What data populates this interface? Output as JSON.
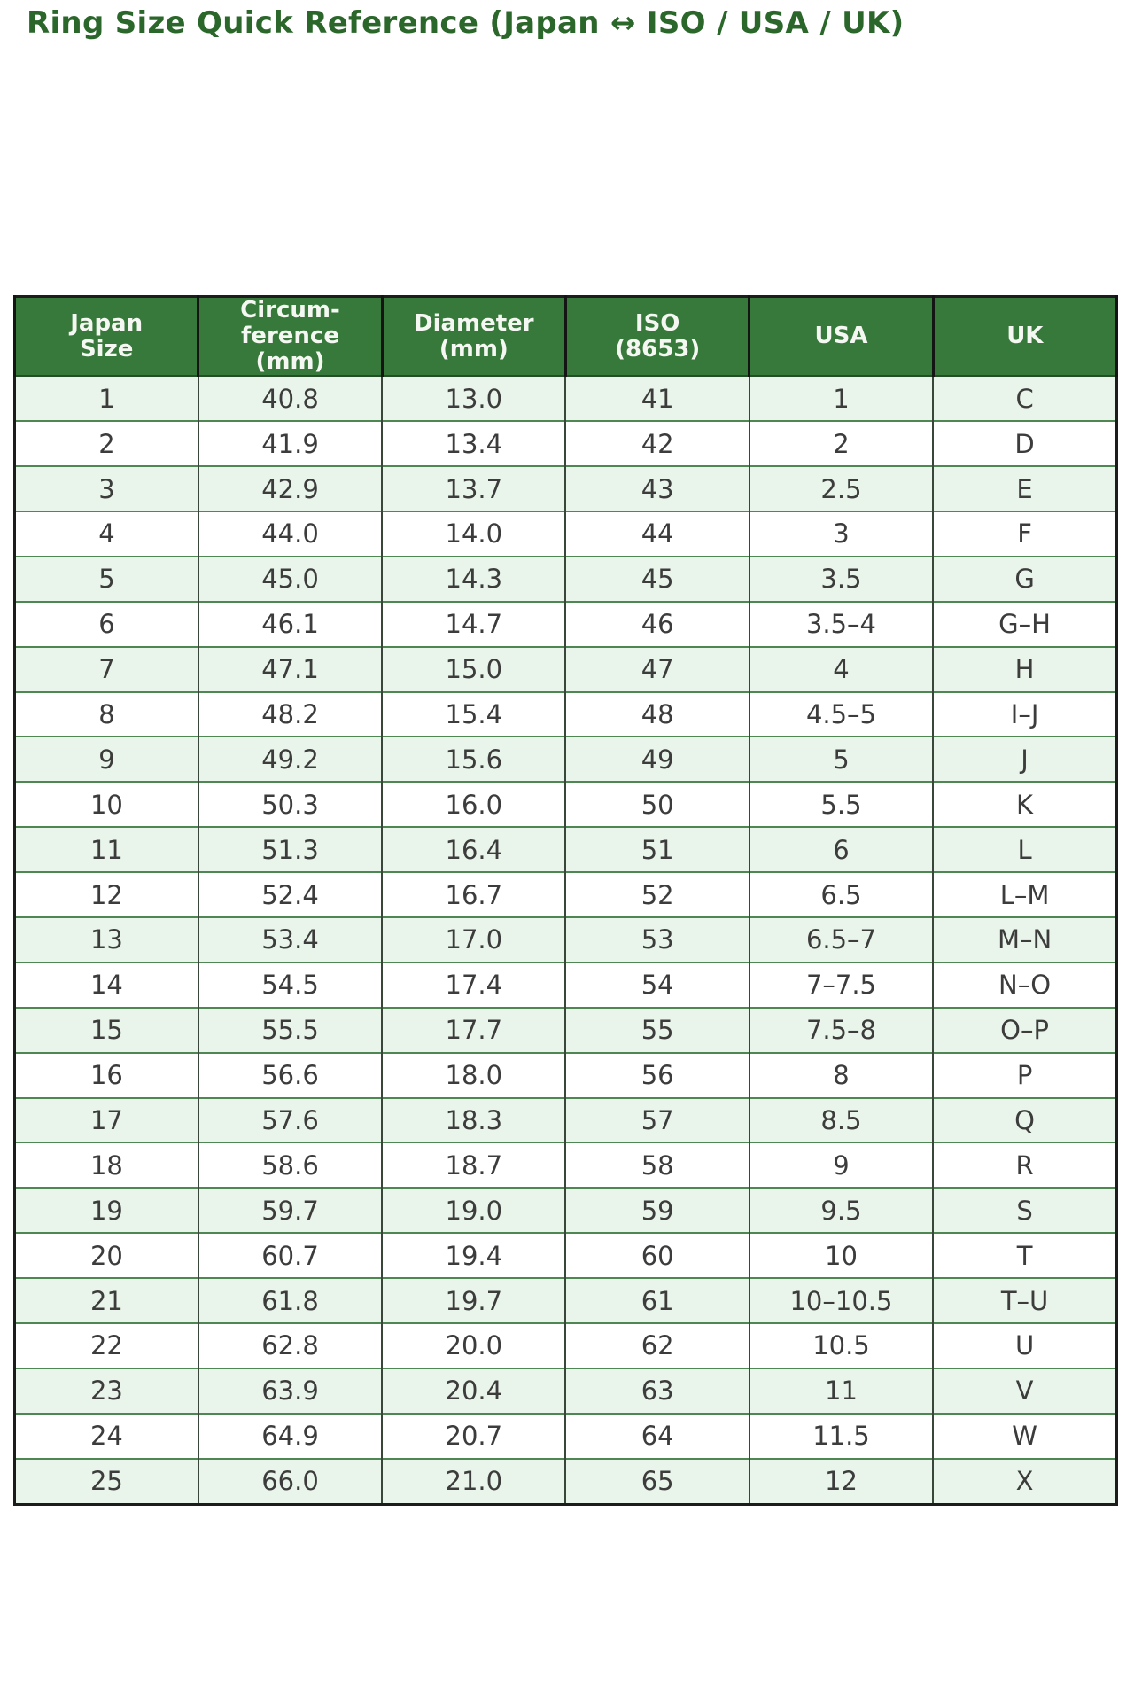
{
  "title": "Ring Size Quick Reference (Japan ↔ ISO / USA / UK)",
  "colors": {
    "title_text": "#2b672b",
    "header_bg": "#37793a",
    "header_text": "#f5f7f2",
    "row_stripe": "#e9f5ea",
    "row_plain": "#ffffff",
    "cell_text": "#3c3c3c",
    "row_border": "#4f8752",
    "column_border": "#39463a",
    "outer_border": "#1c1c1c"
  },
  "chart_data": {
    "type": "table",
    "title": "Ring Size Quick Reference (Japan ↔ ISO / USA / UK)",
    "columns": [
      "Japan\nSize",
      "Circum-\nference\n(mm)",
      "Diameter\n(mm)",
      "ISO\n(8653)",
      "USA",
      "UK"
    ],
    "rows": [
      [
        "1",
        "40.8",
        "13.0",
        "41",
        "1",
        "C"
      ],
      [
        "2",
        "41.9",
        "13.4",
        "42",
        "2",
        "D"
      ],
      [
        "3",
        "42.9",
        "13.7",
        "43",
        "2.5",
        "E"
      ],
      [
        "4",
        "44.0",
        "14.0",
        "44",
        "3",
        "F"
      ],
      [
        "5",
        "45.0",
        "14.3",
        "45",
        "3.5",
        "G"
      ],
      [
        "6",
        "46.1",
        "14.7",
        "46",
        "3.5–4",
        "G–H"
      ],
      [
        "7",
        "47.1",
        "15.0",
        "47",
        "4",
        "H"
      ],
      [
        "8",
        "48.2",
        "15.4",
        "48",
        "4.5–5",
        "I–J"
      ],
      [
        "9",
        "49.2",
        "15.6",
        "49",
        "5",
        "J"
      ],
      [
        "10",
        "50.3",
        "16.0",
        "50",
        "5.5",
        "K"
      ],
      [
        "11",
        "51.3",
        "16.4",
        "51",
        "6",
        "L"
      ],
      [
        "12",
        "52.4",
        "16.7",
        "52",
        "6.5",
        "L–M"
      ],
      [
        "13",
        "53.4",
        "17.0",
        "53",
        "6.5–7",
        "M–N"
      ],
      [
        "14",
        "54.5",
        "17.4",
        "54",
        "7–7.5",
        "N–O"
      ],
      [
        "15",
        "55.5",
        "17.7",
        "55",
        "7.5–8",
        "O–P"
      ],
      [
        "16",
        "56.6",
        "18.0",
        "56",
        "8",
        "P"
      ],
      [
        "17",
        "57.6",
        "18.3",
        "57",
        "8.5",
        "Q"
      ],
      [
        "18",
        "58.6",
        "18.7",
        "58",
        "9",
        "R"
      ],
      [
        "19",
        "59.7",
        "19.0",
        "59",
        "9.5",
        "S"
      ],
      [
        "20",
        "60.7",
        "19.4",
        "60",
        "10",
        "T"
      ],
      [
        "21",
        "61.8",
        "19.7",
        "61",
        "10–10.5",
        "T–U"
      ],
      [
        "22",
        "62.8",
        "20.0",
        "62",
        "10.5",
        "U"
      ],
      [
        "23",
        "63.9",
        "20.4",
        "63",
        "11",
        "V"
      ],
      [
        "24",
        "64.9",
        "20.7",
        "64",
        "11.5",
        "W"
      ],
      [
        "25",
        "66.0",
        "21.0",
        "65",
        "12",
        "X"
      ]
    ],
    "layout": {
      "grid": true,
      "striped_rows": true,
      "first_row_striped": true,
      "header_position": "top"
    }
  }
}
